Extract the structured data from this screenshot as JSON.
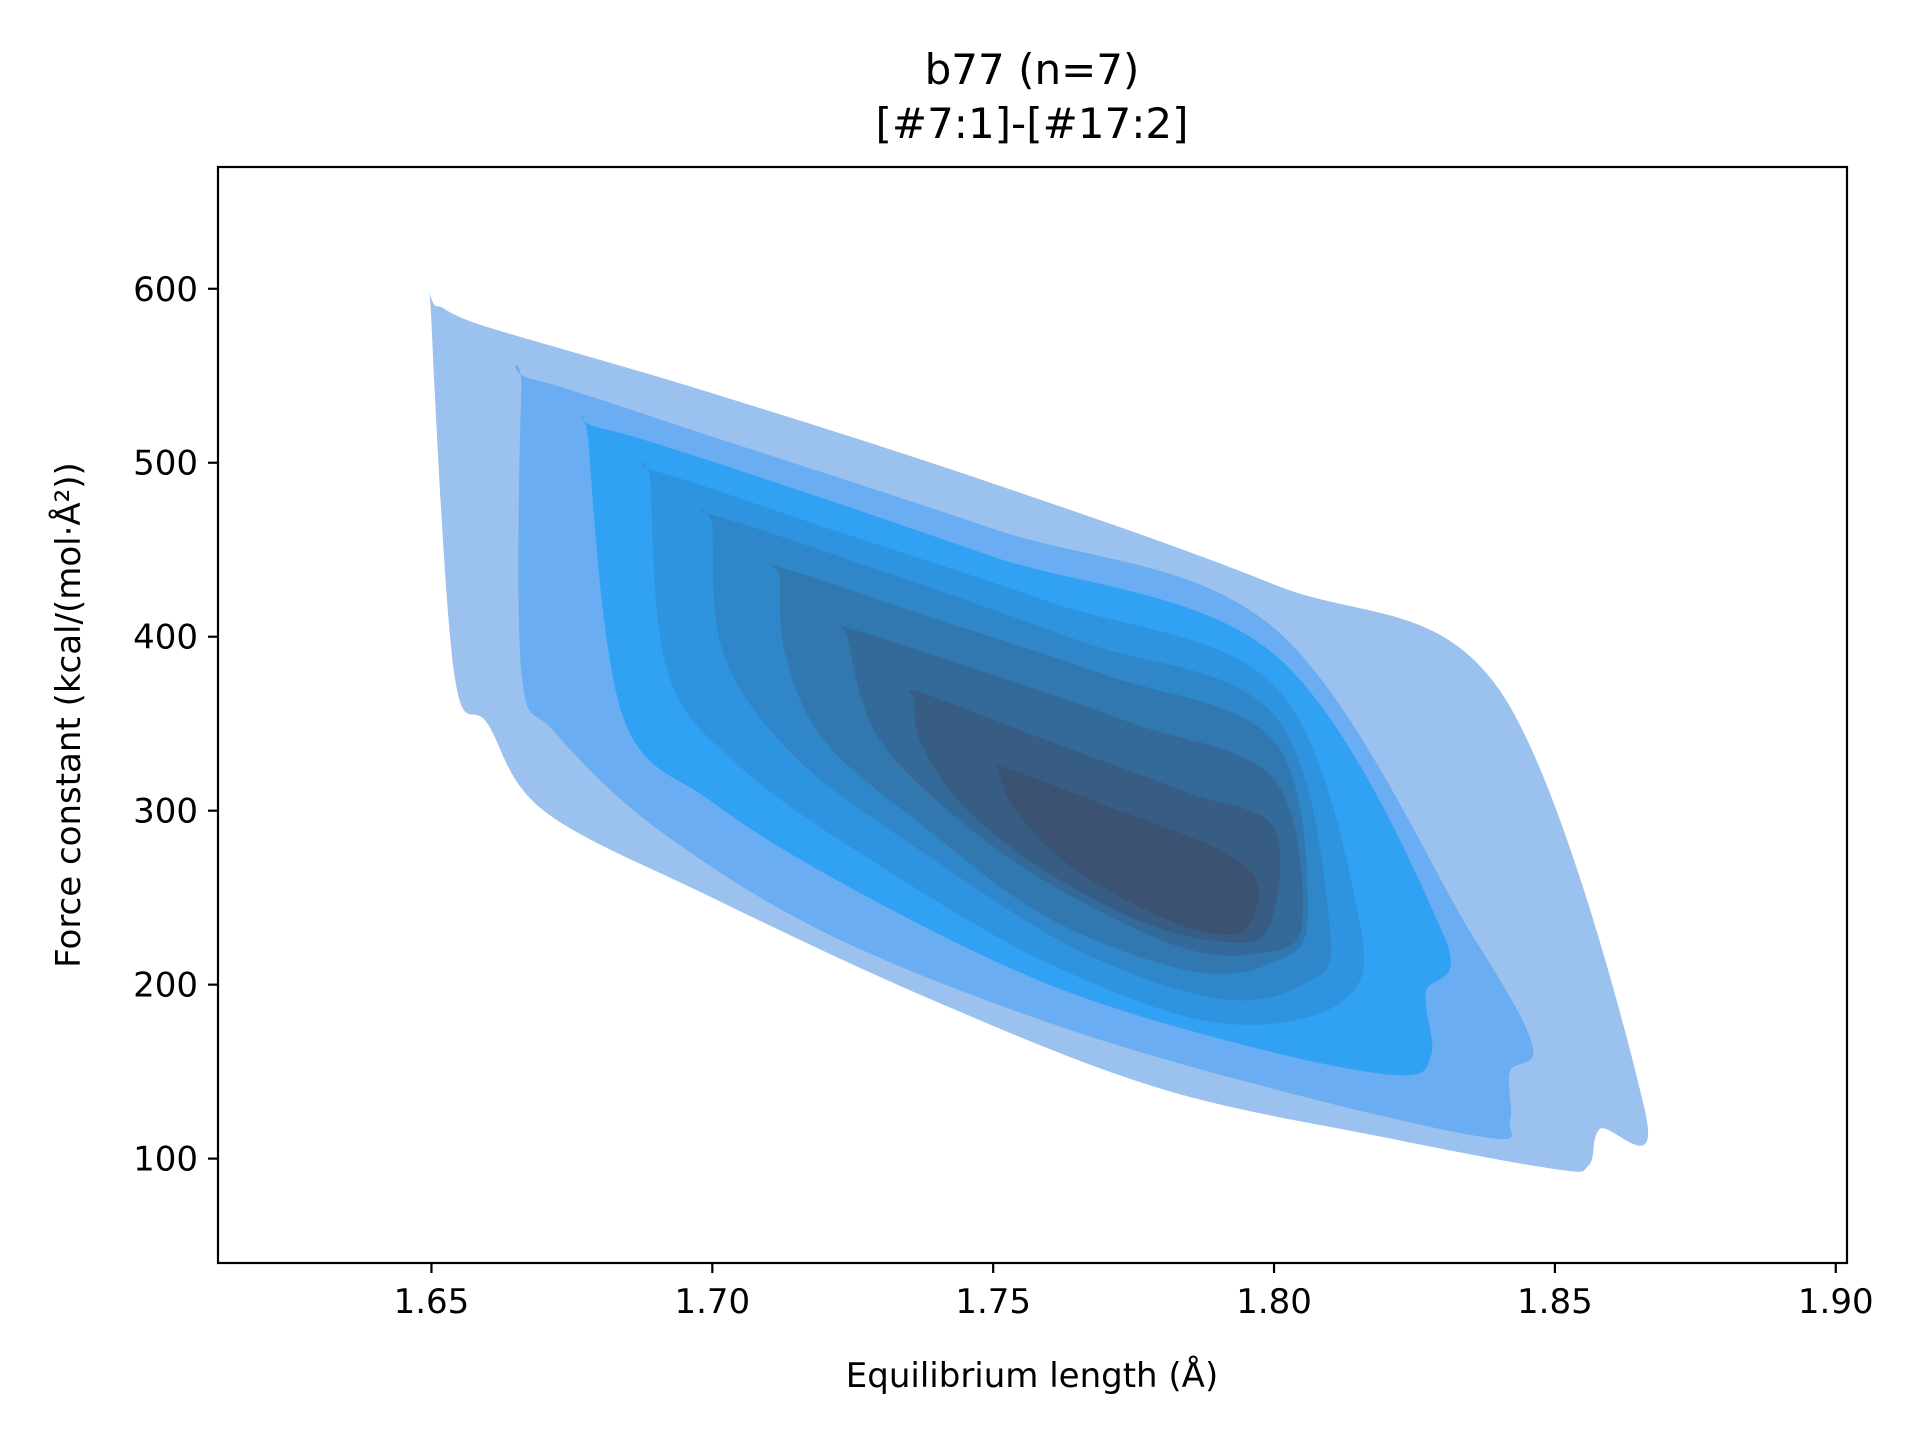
{
  "chart_data": {
    "type": "kde-contour",
    "title": "b77 (n=7)",
    "subtitle": "[#7:1]-[#17:2]",
    "xlabel": "Equilibrium length (Å)",
    "ylabel": "Force constant (kcal/(mol·Å²))",
    "xlim": [
      1.612,
      1.902
    ],
    "ylim": [
      40,
      670
    ],
    "x_ticks": [
      1.65,
      1.7,
      1.75,
      1.8,
      1.85,
      1.9
    ],
    "x_tick_labels": [
      "1.65",
      "1.70",
      "1.75",
      "1.80",
      "1.85",
      "1.90"
    ],
    "y_ticks": [
      100,
      200,
      300,
      400,
      500,
      600
    ],
    "y_tick_labels": [
      "100",
      "200",
      "300",
      "400",
      "500",
      "600"
    ],
    "grid": false,
    "legend": "none",
    "density_center": {
      "x": 1.775,
      "y": 265
    },
    "levels": [
      {
        "level": 1,
        "color": "#9bc1ee",
        "polygon": [
          [
            1.651,
            590
          ],
          [
            1.66,
            578
          ],
          [
            1.7,
            540
          ],
          [
            1.75,
            488
          ],
          [
            1.8,
            430
          ],
          [
            1.84,
            370
          ],
          [
            1.866,
            128
          ],
          [
            1.858,
            117
          ],
          [
            1.856,
            96
          ],
          [
            1.85,
            94
          ],
          [
            1.82,
            112
          ],
          [
            1.78,
            140
          ],
          [
            1.74,
            190
          ],
          [
            1.7,
            250
          ],
          [
            1.67,
            300
          ],
          [
            1.66,
            350
          ],
          [
            1.654,
            380
          ],
          [
            1.65,
            580
          ]
        ]
      },
      {
        "level": 2,
        "color": "#6aadf2",
        "polygon": [
          [
            1.668,
            548
          ],
          [
            1.7,
            515
          ],
          [
            1.75,
            462
          ],
          [
            1.8,
            405
          ],
          [
            1.835,
            230
          ],
          [
            1.846,
            165
          ],
          [
            1.842,
            150
          ],
          [
            1.842,
            122
          ],
          [
            1.838,
            112
          ],
          [
            1.8,
            140
          ],
          [
            1.76,
            178
          ],
          [
            1.72,
            230
          ],
          [
            1.69,
            290
          ],
          [
            1.672,
            345
          ],
          [
            1.666,
            380
          ],
          [
            1.666,
            540
          ]
        ]
      },
      {
        "level": 3,
        "color": "#31a1f4",
        "polygon": [
          [
            1.68,
            520
          ],
          [
            1.71,
            490
          ],
          [
            1.75,
            446
          ],
          [
            1.8,
            390
          ],
          [
            1.83,
            230
          ],
          [
            1.827,
            195
          ],
          [
            1.828,
            160
          ],
          [
            1.822,
            148
          ],
          [
            1.795,
            165
          ],
          [
            1.76,
            200
          ],
          [
            1.725,
            255
          ],
          [
            1.7,
            305
          ],
          [
            1.684,
            355
          ],
          [
            1.678,
            510
          ]
        ]
      },
      {
        "level": 4,
        "color": "#2f94e0",
        "polygon": [
          [
            1.69,
            495
          ],
          [
            1.72,
            463
          ],
          [
            1.76,
            420
          ],
          [
            1.8,
            372
          ],
          [
            1.815,
            240
          ],
          [
            1.812,
            190
          ],
          [
            1.79,
            178
          ],
          [
            1.76,
            212
          ],
          [
            1.73,
            268
          ],
          [
            1.705,
            325
          ],
          [
            1.692,
            380
          ],
          [
            1.689,
            488
          ]
        ]
      },
      {
        "level": 5,
        "color": "#2f86c8",
        "polygon": [
          [
            1.7,
            470
          ],
          [
            1.73,
            438
          ],
          [
            1.765,
            398
          ],
          [
            1.8,
            355
          ],
          [
            1.81,
            230
          ],
          [
            1.805,
            200
          ],
          [
            1.79,
            192
          ],
          [
            1.765,
            220
          ],
          [
            1.738,
            275
          ],
          [
            1.715,
            330
          ],
          [
            1.702,
            390
          ],
          [
            1.7,
            463
          ]
        ]
      },
      {
        "level": 6,
        "color": "#3178b0",
        "polygon": [
          [
            1.712,
            440
          ],
          [
            1.74,
            410
          ],
          [
            1.77,
            378
          ],
          [
            1.8,
            340
          ],
          [
            1.806,
            240
          ],
          [
            1.8,
            213
          ],
          [
            1.785,
            208
          ],
          [
            1.76,
            238
          ],
          [
            1.738,
            290
          ],
          [
            1.72,
            340
          ],
          [
            1.713,
            390
          ],
          [
            1.712,
            434
          ]
        ]
      },
      {
        "level": 7,
        "color": "#346a99",
        "polygon": [
          [
            1.724,
            405
          ],
          [
            1.75,
            378
          ],
          [
            1.775,
            350
          ],
          [
            1.8,
            318
          ],
          [
            1.805,
            235
          ],
          [
            1.797,
            218
          ],
          [
            1.783,
            222
          ],
          [
            1.76,
            258
          ],
          [
            1.742,
            300
          ],
          [
            1.729,
            345
          ],
          [
            1.724,
            400
          ]
        ]
      },
      {
        "level": 8,
        "color": "#385d85",
        "polygon": [
          [
            1.737,
            368
          ],
          [
            1.76,
            340
          ],
          [
            1.785,
            310
          ],
          [
            1.8,
            290
          ],
          [
            1.799,
            232
          ],
          [
            1.79,
            225
          ],
          [
            1.775,
            238
          ],
          [
            1.757,
            270
          ],
          [
            1.744,
            305
          ],
          [
            1.737,
            340
          ],
          [
            1.736,
            363
          ]
        ]
      },
      {
        "level": 9,
        "color": "#3b5272",
        "polygon": [
          [
            1.752,
            325
          ],
          [
            1.77,
            303
          ],
          [
            1.79,
            278
          ],
          [
            1.797,
            258
          ],
          [
            1.795,
            232
          ],
          [
            1.788,
            230
          ],
          [
            1.777,
            243
          ],
          [
            1.763,
            270
          ],
          [
            1.754,
            300
          ],
          [
            1.751,
            322
          ]
        ]
      }
    ]
  }
}
